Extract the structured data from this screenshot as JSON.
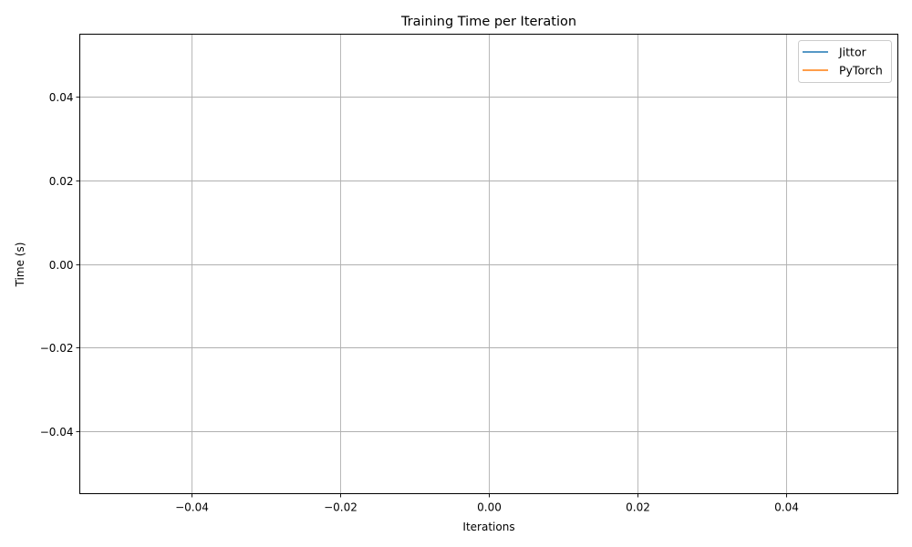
{
  "chart_data": {
    "type": "line",
    "title": "Training Time per Iteration",
    "xlabel": "Iterations",
    "ylabel": "Time (s)",
    "xlim": [
      -0.055,
      0.055
    ],
    "ylim": [
      -0.055,
      0.055
    ],
    "x_ticks": [
      -0.04,
      -0.02,
      0.0,
      0.02,
      0.04
    ],
    "x_tick_labels": [
      "−0.04",
      "−0.02",
      "0.00",
      "0.02",
      "0.04"
    ],
    "y_ticks": [
      -0.04,
      -0.02,
      0.0,
      0.02,
      0.04
    ],
    "y_tick_labels": [
      "−0.04",
      "−0.02",
      "0.00",
      "0.02",
      "0.04"
    ],
    "grid": true,
    "legend_position": "top-right",
    "series": [
      {
        "name": "Jittor",
        "color": "#1f77b4",
        "x": [],
        "y": []
      },
      {
        "name": "PyTorch",
        "color": "#ff7f0e",
        "x": [],
        "y": []
      }
    ]
  }
}
